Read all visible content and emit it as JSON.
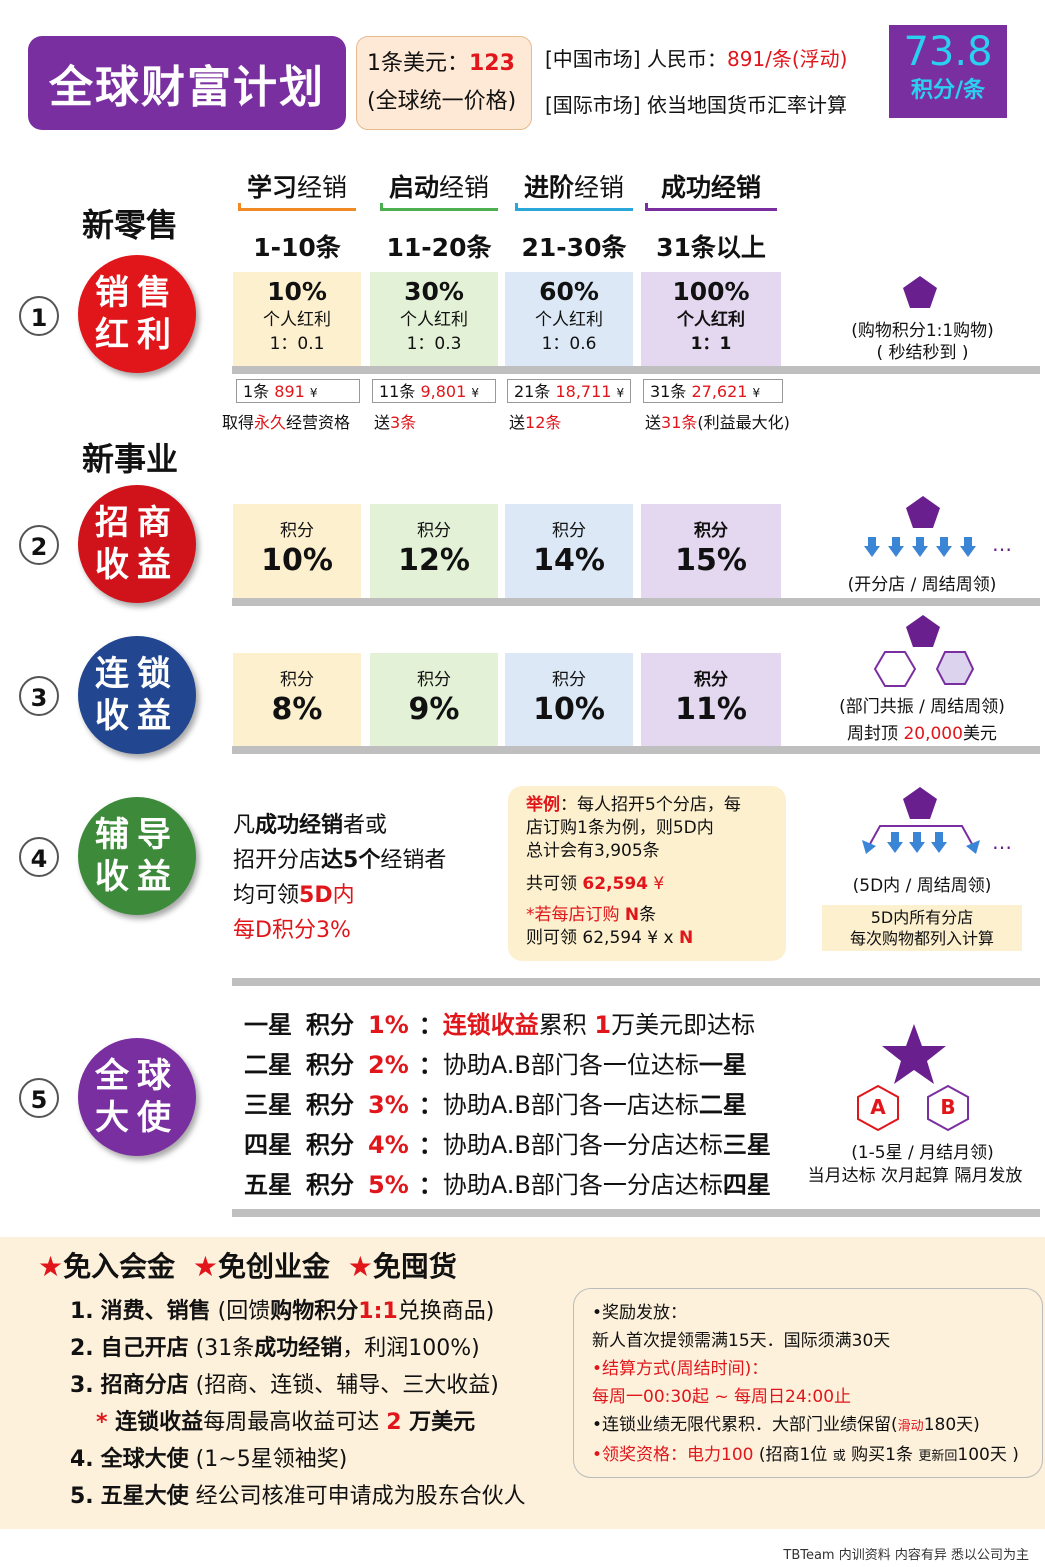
{
  "header": {
    "title": "全球财富计划",
    "price_line1_prefix": "1条美元：",
    "price_line1_value": "123",
    "price_line2": "(全球统一价格)",
    "china_market_prefix": "[中国市场] 人民币：",
    "china_market_value": "891/条(浮动)",
    "intl_market": "[国际市场] 依当地国货币汇率计算",
    "points_value": "73.8",
    "points_unit": "积分/条"
  },
  "sections": {
    "retail": "新零售",
    "business": "新事业"
  },
  "levels": [
    {
      "name_bold": "学习",
      "name_rest": "经销",
      "range": "1-10条",
      "color": "#f08a24"
    },
    {
      "name_bold": "启动",
      "name_rest": "经销",
      "range": "11-20条",
      "color": "#4caf50"
    },
    {
      "name_bold": "进阶",
      "name_rest": "经销",
      "range": "21-30条",
      "color": "#2aa7d8"
    },
    {
      "name_bold": "成功经销",
      "name_rest": "",
      "range": "31条以上",
      "color": "#7a2fa0"
    }
  ],
  "row1": {
    "num": "1",
    "ball_line1": "销售",
    "ball_line2": "红利",
    "ball_color": "#e0161b",
    "cells": [
      {
        "pct": "10%",
        "label": "个人红利",
        "ratio": "1：0.1"
      },
      {
        "pct": "30%",
        "label": "个人红利",
        "ratio": "1：0.3"
      },
      {
        "pct": "60%",
        "label": "个人红利",
        "ratio": "1：0.6"
      },
      {
        "pct": "100%",
        "label": "个人红利",
        "ratio": "1：1"
      }
    ],
    "side1": "(购物积分1:1购物)",
    "side2": "( 秒结秒到 )",
    "prices": [
      {
        "qty": "1条",
        "amount": "891",
        "unit": "¥"
      },
      {
        "qty": "11条",
        "amount": "9,801",
        "unit": "¥"
      },
      {
        "qty": "21条",
        "amount": "18,711",
        "unit": "¥"
      },
      {
        "qty": "31条",
        "amount": "27,621",
        "unit": "¥"
      }
    ],
    "notes": [
      {
        "a": "取得",
        "b": "永久",
        "c": "经营资格"
      },
      {
        "a": "送",
        "b": "3条",
        "c": ""
      },
      {
        "a": "送",
        "b": "12条",
        "c": ""
      },
      {
        "a": "送",
        "b": "31条",
        "c": "(利益最大化)"
      }
    ]
  },
  "row2": {
    "num": "2",
    "ball_line1": "招商",
    "ball_line2": "收益",
    "ball_color": "#d0121b",
    "cells": [
      {
        "label": "积分",
        "pct": "10%"
      },
      {
        "label": "积分",
        "pct": "12%"
      },
      {
        "label": "积分",
        "pct": "14%"
      },
      {
        "label": "积分",
        "pct": "15%"
      }
    ],
    "side": "(开分店 / 周结周领)",
    "dots": "…"
  },
  "row3": {
    "num": "3",
    "ball_line1": "连锁",
    "ball_line2": "收益",
    "ball_color": "#22468f",
    "cells": [
      {
        "label": "积分",
        "pct": "8%"
      },
      {
        "label": "积分",
        "pct": "9%"
      },
      {
        "label": "积分",
        "pct": "10%"
      },
      {
        "label": "积分",
        "pct": "11%"
      }
    ],
    "side1": "(部门共振 / 周结周领)",
    "side2_prefix": "周封顶 ",
    "side2_value": "20,000",
    "side2_suffix": "美元"
  },
  "row4": {
    "num": "4",
    "ball_line1": "辅导",
    "ball_line2": "收益",
    "ball_color": "#3d8a3a",
    "text1_a": "凡",
    "text1_b": "成功经销",
    "text1_c": "者或",
    "text2_a": "招开分店",
    "text2_b": "达5个",
    "text2_c": "经销者",
    "text3_a": "均可领",
    "text3_b": "5D",
    "text3_c": "内",
    "text4": "每D积分3%",
    "example_title": "举例",
    "example_line1": "：每人招开5个分店，每",
    "example_line2": "店订购1条为例，则5D内",
    "example_line3": "总计会有3,905条",
    "example_line4_prefix": "共可领 ",
    "example_line4_value": "62,594",
    "example_line4_unit": " ¥",
    "example_line5_a": "*若每店订购 ",
    "example_line5_b": "N",
    "example_line5_c": "条",
    "example_line6_a": "则可领 62,594 ¥ x ",
    "example_line6_b": "N",
    "side": "(5D内 / 周结周领)",
    "side_box1": "5D内所有分店",
    "side_box2": "每次购物都列入计算",
    "dots": "…"
  },
  "row5": {
    "num": "5",
    "ball_line1": "全球",
    "ball_line2": "大使",
    "ball_color": "#7a2fa0",
    "stars": [
      {
        "star": "一星",
        "label": "积分",
        "pct": "1%",
        "colon": "：",
        "desc_red": "连锁收益",
        "desc": "累积 ",
        "desc_red2": "1",
        "desc2": "万美元即达标"
      },
      {
        "star": "二星",
        "label": "积分",
        "pct": "2%",
        "colon": "：",
        "desc_red": "",
        "desc": "协助A.B部门各一位达标",
        "desc_red2": "",
        "desc2": "一星"
      },
      {
        "star": "三星",
        "label": "积分",
        "pct": "3%",
        "colon": "：",
        "desc_red": "",
        "desc": "协助A.B部门各一店达标",
        "desc_red2": "",
        "desc2": "二星"
      },
      {
        "star": "四星",
        "label": "积分",
        "pct": "4%",
        "colon": "：",
        "desc_red": "",
        "desc": "协助A.B部门各一分店达标",
        "desc_red2": "",
        "desc2": "三星"
      },
      {
        "star": "五星",
        "label": "积分",
        "pct": "5%",
        "colon": "：",
        "desc_red": "",
        "desc": "协助A.B部门各一分店达标",
        "desc_red2": "",
        "desc2": "四星"
      }
    ],
    "hex_a": "A",
    "hex_b": "B",
    "side1": "(1-5星 / 月结月领)",
    "side2": "当月达标 次月起算 隔月发放"
  },
  "bottom": {
    "perks": [
      "免入会金",
      "免创业金",
      "免囤货"
    ],
    "items": [
      {
        "num": "1.",
        "bold": "消费、销售",
        "a": "  (回馈",
        "b": "购物积分",
        "c": "1:1",
        "d": "兑换商品)"
      },
      {
        "num": "2.",
        "bold": "自己开店",
        "a": "  (31条",
        "b": "成功经销",
        "c": "",
        "d": "，利润100%)"
      },
      {
        "num": "3.",
        "bold": "招商分店",
        "a": "  (招商、连锁、辅导、三大收益)",
        "b": "",
        "c": "",
        "d": ""
      },
      {
        "num": "4.",
        "bold": "全球大使",
        "a": "  (1~5星领袖奖)",
        "b": "",
        "c": "",
        "d": ""
      },
      {
        "num": "5.",
        "bold": "五星大使",
        "a": "  经公司核准可申请成为股东合伙人",
        "b": "",
        "c": "",
        "d": ""
      }
    ],
    "sub_star": "*",
    "sub_bold": " 连锁收益",
    "sub_text": "每周最高收益可达 ",
    "sub_red": "2",
    "sub_end": " 万美元",
    "info": {
      "l1": "•奖励发放：",
      "l2": "  新人首次提领需满15天．国际须满30天",
      "l3": "•结算方式(周结时间)：",
      "l4": "  每周一00:30起 ~ 每周日24:00止",
      "l5_a": "•连锁业绩无限代累积．大部门业绩保留(",
      "l5_b": "滑动",
      "l5_c": "180天)",
      "l6_a": "•领奖资格：电力100",
      "l6_b": " (招商1位 ",
      "l6_c": "或",
      "l6_d": " 购买1条 ",
      "l6_e": "更新回",
      "l6_f": "100天 )"
    }
  },
  "footer": "TBTeam 内训资料 内容有异 悉以公司为主",
  "colors": {
    "purple": "#7a2fa0",
    "red": "#e0161b",
    "cyan": "#2bd0f0"
  }
}
